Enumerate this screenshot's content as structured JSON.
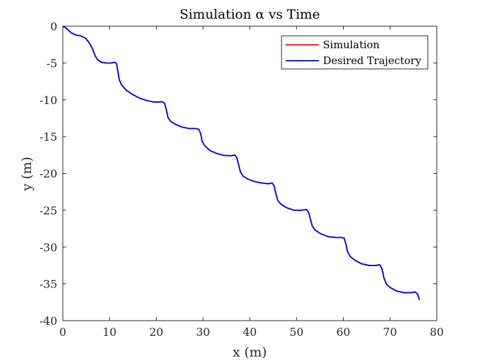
{
  "chart_data": {
    "type": "line",
    "title": "Simulation α vs Time",
    "xlabel": "x (m)",
    "ylabel": "y (m)",
    "xlim": [
      0,
      80
    ],
    "ylim": [
      -40,
      0
    ],
    "xticks": [
      0,
      10,
      20,
      30,
      40,
      50,
      60,
      70,
      80
    ],
    "yticks": [
      0,
      -5,
      -10,
      -15,
      -20,
      -25,
      -30,
      -35,
      -40
    ],
    "xtick_labels": [
      "0",
      "10",
      "20",
      "30",
      "40",
      "50",
      "60",
      "70",
      "80"
    ],
    "ytick_labels": [
      "0",
      "-5",
      "-10",
      "-15",
      "-20",
      "-25",
      "-30",
      "-35",
      "-40"
    ],
    "grid": false,
    "legend": {
      "position": "top-right",
      "entries": [
        "Simulation",
        "Desired Trajectory"
      ]
    },
    "series": [
      {
        "name": "Simulation",
        "color": "#ff0000",
        "points": [
          [
            0,
            0
          ],
          [
            0.8,
            -0.3
          ],
          [
            1.8,
            -0.9
          ],
          [
            2.8,
            -1.2
          ],
          [
            3.8,
            -1.3
          ],
          [
            4.8,
            -1.6
          ],
          [
            5.6,
            -2.2
          ],
          [
            6.3,
            -3.0
          ],
          [
            6.9,
            -4.0
          ],
          [
            7.5,
            -4.6
          ],
          [
            8.3,
            -4.9
          ],
          [
            9.3,
            -5.0
          ],
          [
            10.3,
            -5.0
          ],
          [
            11.2,
            -4.9
          ],
          [
            11.5,
            -5.1
          ],
          [
            11.8,
            -6.2
          ],
          [
            12.1,
            -7.3
          ],
          [
            12.6,
            -8.0
          ],
          [
            13.6,
            -8.7
          ],
          [
            15,
            -9.3
          ],
          [
            16.5,
            -9.8
          ],
          [
            18,
            -10.1
          ],
          [
            19.5,
            -10.3
          ],
          [
            20.6,
            -10.3
          ],
          [
            21.3,
            -10.25
          ],
          [
            21.8,
            -10.5
          ],
          [
            22.2,
            -11.5
          ],
          [
            22.5,
            -12.4
          ],
          [
            23.0,
            -12.9
          ],
          [
            24.0,
            -13.3
          ],
          [
            25.5,
            -13.7
          ],
          [
            27,
            -13.9
          ],
          [
            28.4,
            -13.9
          ],
          [
            29.1,
            -14.0
          ],
          [
            29.5,
            -14.6
          ],
          [
            29.8,
            -15.6
          ],
          [
            30.3,
            -16.2
          ],
          [
            31.5,
            -16.9
          ],
          [
            33,
            -17.3
          ],
          [
            34.5,
            -17.55
          ],
          [
            36,
            -17.6
          ],
          [
            36.8,
            -17.5
          ],
          [
            37.2,
            -17.8
          ],
          [
            37.6,
            -18.8
          ],
          [
            38.0,
            -19.8
          ],
          [
            38.6,
            -20.4
          ],
          [
            39.7,
            -20.8
          ],
          [
            41,
            -21.1
          ],
          [
            42.5,
            -21.3
          ],
          [
            44,
            -21.4
          ],
          [
            44.8,
            -21.3
          ],
          [
            45.2,
            -21.7
          ],
          [
            45.6,
            -22.8
          ],
          [
            46.0,
            -23.7
          ],
          [
            46.7,
            -24.2
          ],
          [
            48,
            -24.7
          ],
          [
            49.5,
            -25.0
          ],
          [
            51,
            -25.0
          ],
          [
            52.1,
            -24.9
          ],
          [
            52.6,
            -25.3
          ],
          [
            53.0,
            -26.3
          ],
          [
            53.4,
            -27.2
          ],
          [
            54,
            -27.7
          ],
          [
            55.2,
            -28.2
          ],
          [
            56.8,
            -28.6
          ],
          [
            58.4,
            -28.7
          ],
          [
            59.7,
            -28.7
          ],
          [
            60.2,
            -28.8
          ],
          [
            60.6,
            -29.7
          ],
          [
            60.9,
            -30.6
          ],
          [
            61.5,
            -31.3
          ],
          [
            62.5,
            -31.8
          ],
          [
            64,
            -32.3
          ],
          [
            65.5,
            -32.5
          ],
          [
            67.0,
            -32.5
          ],
          [
            67.8,
            -32.4
          ],
          [
            68.3,
            -33.0
          ],
          [
            68.7,
            -34.2
          ],
          [
            69.2,
            -35.0
          ],
          [
            70,
            -35.5
          ],
          [
            71.5,
            -36.0
          ],
          [
            73,
            -36.2
          ],
          [
            74.5,
            -36.2
          ],
          [
            75.4,
            -36.1
          ],
          [
            75.9,
            -36.4
          ],
          [
            76.2,
            -37.0
          ],
          [
            76.3,
            -37.2
          ]
        ]
      },
      {
        "name": "Desired Trajectory",
        "color": "#0000ff",
        "points": [
          [
            0,
            0
          ],
          [
            0.8,
            -0.3
          ],
          [
            1.8,
            -0.9
          ],
          [
            2.8,
            -1.2
          ],
          [
            3.8,
            -1.3
          ],
          [
            4.8,
            -1.6
          ],
          [
            5.6,
            -2.2
          ],
          [
            6.3,
            -3.0
          ],
          [
            6.9,
            -4.0
          ],
          [
            7.5,
            -4.6
          ],
          [
            8.3,
            -4.9
          ],
          [
            9.3,
            -5.0
          ],
          [
            10.3,
            -5.0
          ],
          [
            11.2,
            -4.9
          ],
          [
            11.5,
            -5.1
          ],
          [
            11.8,
            -6.2
          ],
          [
            12.1,
            -7.3
          ],
          [
            12.6,
            -8.0
          ],
          [
            13.6,
            -8.7
          ],
          [
            15,
            -9.3
          ],
          [
            16.5,
            -9.8
          ],
          [
            18,
            -10.1
          ],
          [
            19.5,
            -10.3
          ],
          [
            20.6,
            -10.3
          ],
          [
            21.3,
            -10.25
          ],
          [
            21.8,
            -10.5
          ],
          [
            22.2,
            -11.5
          ],
          [
            22.5,
            -12.4
          ],
          [
            23.0,
            -12.9
          ],
          [
            24.0,
            -13.3
          ],
          [
            25.5,
            -13.7
          ],
          [
            27,
            -13.9
          ],
          [
            28.4,
            -13.9
          ],
          [
            29.1,
            -14.0
          ],
          [
            29.5,
            -14.6
          ],
          [
            29.8,
            -15.6
          ],
          [
            30.3,
            -16.2
          ],
          [
            31.5,
            -16.9
          ],
          [
            33,
            -17.3
          ],
          [
            34.5,
            -17.55
          ],
          [
            36,
            -17.6
          ],
          [
            36.8,
            -17.5
          ],
          [
            37.2,
            -17.8
          ],
          [
            37.6,
            -18.8
          ],
          [
            38.0,
            -19.8
          ],
          [
            38.6,
            -20.4
          ],
          [
            39.7,
            -20.8
          ],
          [
            41,
            -21.1
          ],
          [
            42.5,
            -21.3
          ],
          [
            44,
            -21.4
          ],
          [
            44.8,
            -21.3
          ],
          [
            45.2,
            -21.7
          ],
          [
            45.6,
            -22.8
          ],
          [
            46.0,
            -23.7
          ],
          [
            46.7,
            -24.2
          ],
          [
            48,
            -24.7
          ],
          [
            49.5,
            -25.0
          ],
          [
            51,
            -25.0
          ],
          [
            52.1,
            -24.9
          ],
          [
            52.6,
            -25.3
          ],
          [
            53.0,
            -26.3
          ],
          [
            53.4,
            -27.2
          ],
          [
            54,
            -27.7
          ],
          [
            55.2,
            -28.2
          ],
          [
            56.8,
            -28.6
          ],
          [
            58.4,
            -28.7
          ],
          [
            59.7,
            -28.7
          ],
          [
            60.2,
            -28.8
          ],
          [
            60.6,
            -29.7
          ],
          [
            60.9,
            -30.6
          ],
          [
            61.5,
            -31.3
          ],
          [
            62.5,
            -31.8
          ],
          [
            64,
            -32.3
          ],
          [
            65.5,
            -32.5
          ],
          [
            67.0,
            -32.5
          ],
          [
            67.8,
            -32.4
          ],
          [
            68.3,
            -33.0
          ],
          [
            68.7,
            -34.2
          ],
          [
            69.2,
            -35.0
          ],
          [
            70,
            -35.5
          ],
          [
            71.5,
            -36.0
          ],
          [
            73,
            -36.2
          ],
          [
            74.5,
            -36.2
          ],
          [
            75.4,
            -36.1
          ],
          [
            75.9,
            -36.4
          ],
          [
            76.2,
            -37.0
          ],
          [
            76.3,
            -37.2
          ]
        ]
      }
    ]
  }
}
